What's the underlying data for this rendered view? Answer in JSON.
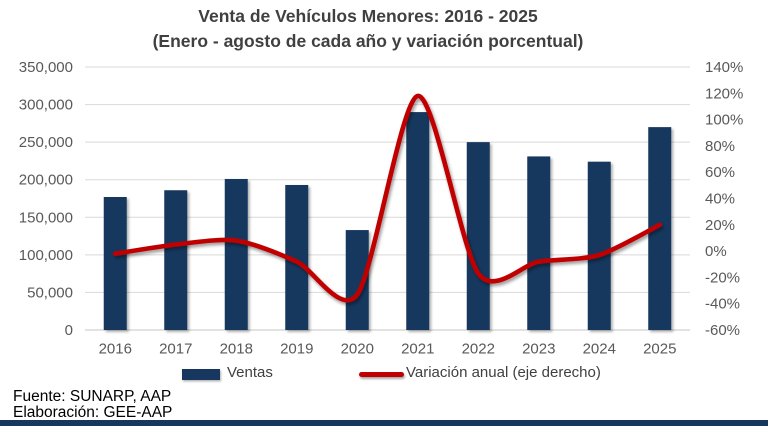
{
  "title": {
    "line1": "Venta de Vehículos Menores: 2016 - 2025",
    "line2": "(Enero - agosto de cada año y variación porcentual)"
  },
  "chart_data": {
    "type": "combo",
    "categories": [
      "2016",
      "2017",
      "2018",
      "2019",
      "2020",
      "2021",
      "2022",
      "2023",
      "2024",
      "2025"
    ],
    "series": [
      {
        "name": "Ventas",
        "type": "bar",
        "axis": "left",
        "values": [
          177000,
          186000,
          201000,
          193000,
          133000,
          290000,
          250000,
          231000,
          224000,
          270000
        ]
      },
      {
        "name": "Variación anual (eje derecho)",
        "type": "smooth-line",
        "axis": "right",
        "values": [
          -2,
          5,
          8,
          -8,
          -33,
          118,
          -17,
          -8,
          -3,
          20
        ]
      }
    ],
    "left_axis": {
      "min": 0,
      "max": 350000,
      "step": 50000,
      "tick_labels": [
        "0",
        "50,000",
        "100,000",
        "150,000",
        "200,000",
        "250,000",
        "300,000",
        "350,000"
      ]
    },
    "right_axis": {
      "min": -60,
      "max": 140,
      "step": 20,
      "tick_labels": [
        "-60%",
        "-40%",
        "-20%",
        "0%",
        "20%",
        "40%",
        "60%",
        "80%",
        "100%",
        "120%",
        "140%"
      ]
    },
    "grid": true,
    "legend_position": "bottom"
  },
  "legend": {
    "ventas_label": "Ventas",
    "variacion_label": "Variación anual (eje derecho)"
  },
  "footer": {
    "fuente": "Fuente: SUNARP, AAP",
    "elaboracion": "Elaboración: GEE-AAP"
  },
  "colors": {
    "bar": "#17375E",
    "line": "#C00000",
    "grid": "#D9D9D9",
    "axis_line": "#C6C6C6",
    "axis_text": "#595959",
    "title_text": "#404040",
    "bottom_bar": "#17375E"
  }
}
